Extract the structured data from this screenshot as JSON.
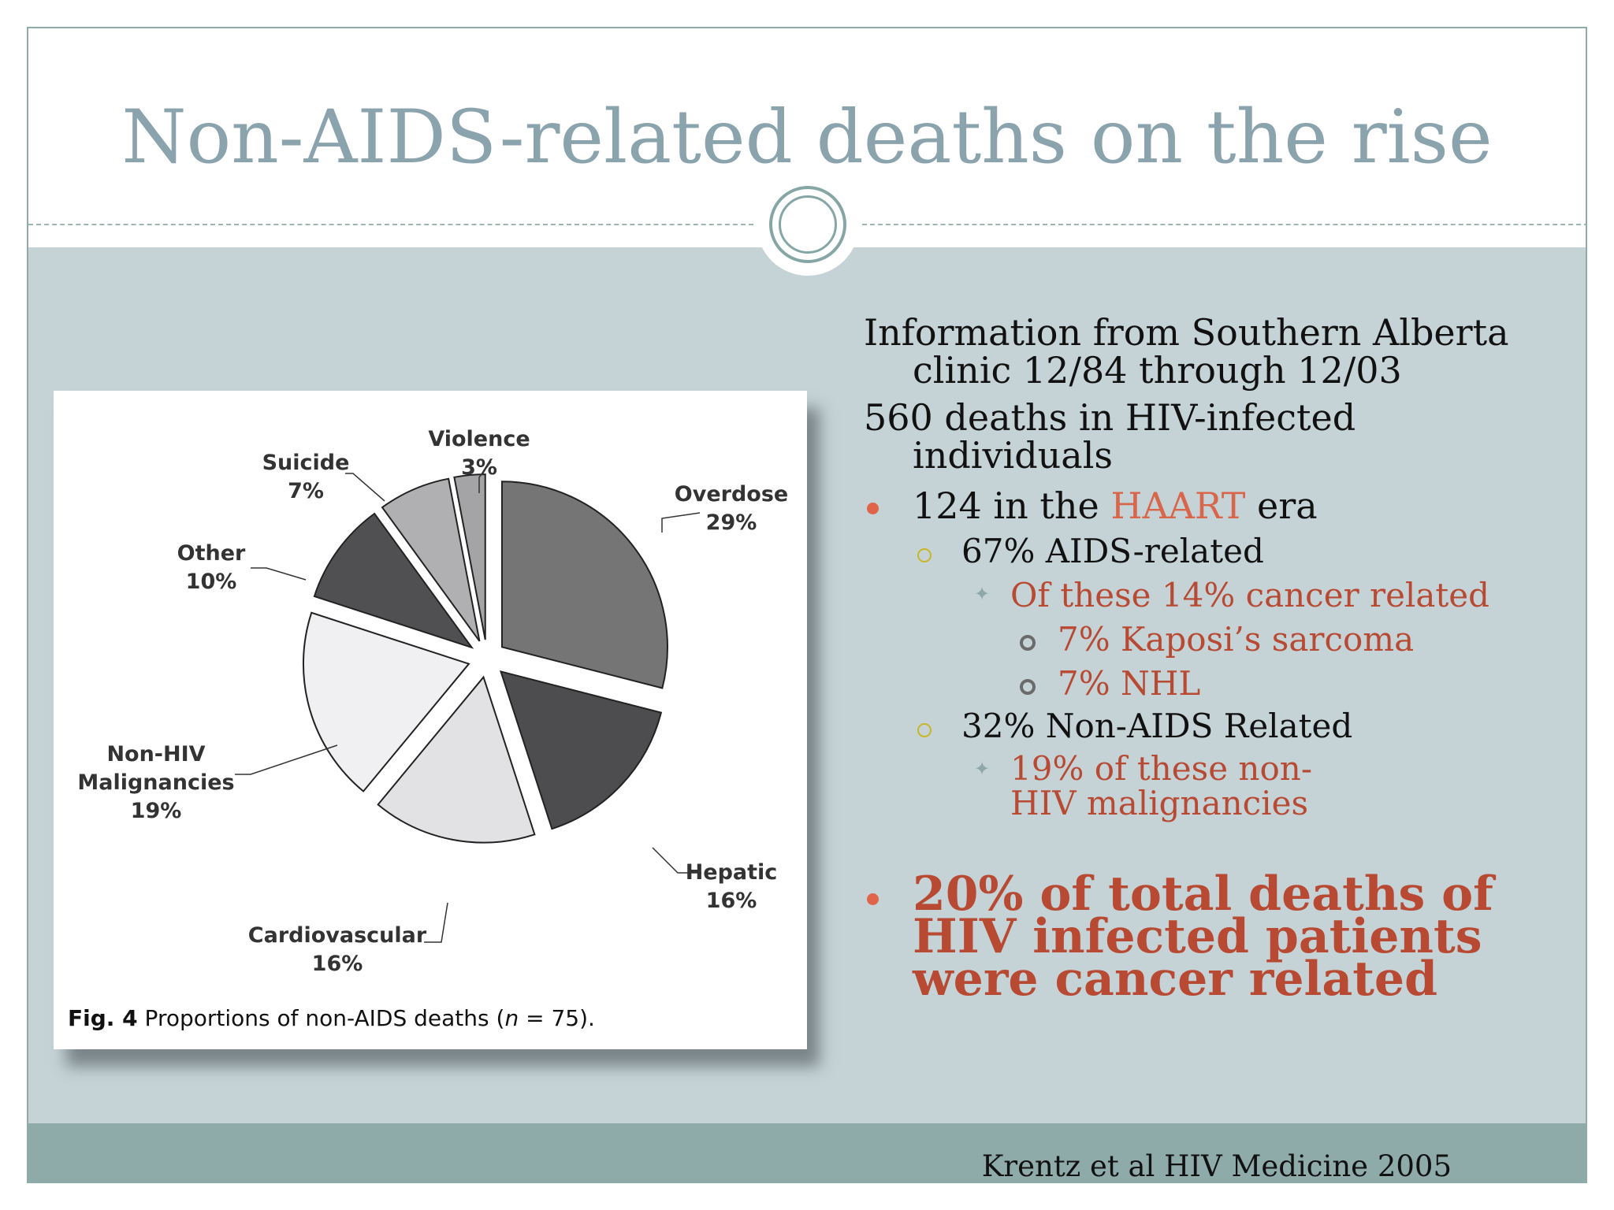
{
  "slide": {
    "title": "Non-AIDS-related deaths on the rise",
    "citation": "Krentz et al HIV Medicine 2005"
  },
  "figure": {
    "caption_prefix": "Fig. 4",
    "caption_text": "Proportions of non-AIDS deaths (",
    "caption_n": "n",
    "caption_suffix": " = 75)."
  },
  "chart_data": {
    "type": "pie",
    "title": "",
    "slices": [
      {
        "label": "Overdose",
        "value": 29,
        "pct_label": "29%",
        "color": "#757575"
      },
      {
        "label": "Hepatic",
        "value": 16,
        "pct_label": "16%",
        "color": "#4d4d4f"
      },
      {
        "label": "Cardiovascular",
        "value": 16,
        "pct_label": "16%",
        "color": "#e2e2e4"
      },
      {
        "label": "Non-HIV Malignancies",
        "value": 19,
        "pct_label": "19%",
        "color": "#f0f0f2"
      },
      {
        "label": "Other",
        "value": 10,
        "pct_label": "10%",
        "color": "#505052"
      },
      {
        "label": "Suicide",
        "value": 7,
        "pct_label": "7%",
        "color": "#b0b0b2"
      },
      {
        "label": "Violence",
        "value": 3,
        "pct_label": "3%",
        "color": "#a4a4a6"
      }
    ]
  },
  "content": {
    "p1": "Information from Southern Alberta clinic 12/84 through 12/03",
    "p2": "560 deaths in HIV-infected individuals",
    "b1_pre": "124 in the ",
    "b1_highlight": "HAART",
    "b1_post": " era",
    "b1_1": "67% AIDS-related",
    "b1_1_1": "Of these 14% cancer related",
    "b1_1_1_1": "7% Kaposi’s sarcoma",
    "b1_1_1_2": "7% NHL",
    "b1_2": "32% Non-AIDS Related",
    "b1_2_1": "19% of these non-HIV malignancies",
    "b2": "20% of total deaths of HIV infected patients were cancer related"
  },
  "colors": {
    "title": "#8aa3ad",
    "accent_red": "#b84a33",
    "bullet": "#e0644a",
    "background": "#c5d3d7",
    "footer": "#8eaaa9"
  }
}
